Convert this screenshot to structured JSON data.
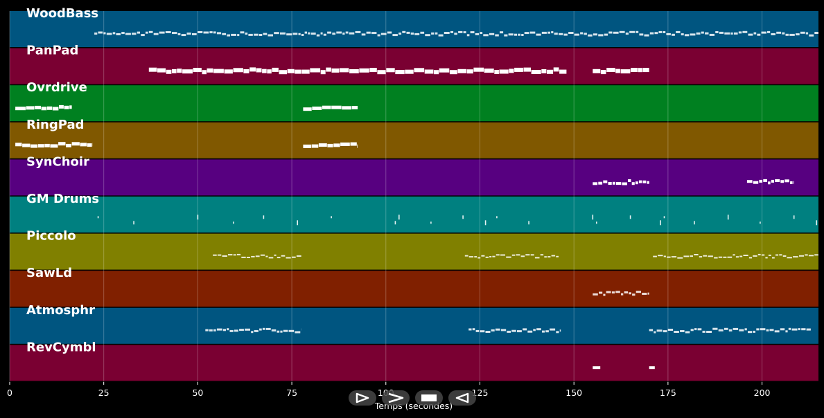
{
  "chart_data": {
    "type": "piano-roll",
    "xlabel": "Temps (secondes)",
    "xlim": [
      0,
      215
    ],
    "x_ticks": [
      0,
      25,
      50,
      75,
      100,
      125,
      150,
      175,
      200
    ],
    "grid": true,
    "tracks": [
      {
        "name": "WoodBass",
        "color": "#005580",
        "note_weight": 3,
        "segments": [
          [
            22.5,
            215
          ]
        ]
      },
      {
        "name": "PanPad",
        "color": "#7a0032",
        "note_weight": 6,
        "segments": [
          [
            37,
            148
          ],
          [
            155,
            170
          ]
        ]
      },
      {
        "name": "Ovrdrive",
        "color": "#008020",
        "note_weight": 5,
        "segments": [
          [
            1.5,
            16.5
          ],
          [
            78,
            92.5
          ]
        ]
      },
      {
        "name": "RingPad",
        "color": "#805800",
        "note_weight": 5,
        "segments": [
          [
            1.5,
            22
          ],
          [
            78,
            92.5
          ]
        ]
      },
      {
        "name": "SynChoir",
        "color": "#570080",
        "note_weight": 4,
        "segments": [
          [
            155,
            170
          ],
          [
            196,
            208.5
          ]
        ]
      },
      {
        "name": "GM Drums",
        "color": "#008080",
        "note_weight": 2,
        "hits": [
          23.5,
          33,
          50,
          59.5,
          67.5,
          76.5,
          85.5,
          102.5,
          103.5,
          112,
          120.5,
          126.5,
          129.5,
          138,
          155,
          156,
          165,
          173,
          174,
          182,
          191,
          199.5,
          208.5,
          214.5
        ]
      },
      {
        "name": "Piccolo",
        "color": "#808000",
        "note_weight": 2,
        "segments": [
          [
            54,
            77.5
          ],
          [
            121,
            146
          ],
          [
            171,
            215
          ]
        ]
      },
      {
        "name": "SawLd",
        "color": "#802000",
        "note_weight": 3,
        "segments": [
          [
            155,
            170
          ]
        ]
      },
      {
        "name": "Atmosphr",
        "color": "#005580",
        "note_weight": 3,
        "segments": [
          [
            52,
            77.5
          ],
          [
            122,
            146.5
          ],
          [
            170,
            213
          ]
        ]
      },
      {
        "name": "RevCymbl",
        "color": "#7a0032",
        "note_weight": 4,
        "notes": [
          [
            155,
            157
          ],
          [
            170,
            171.5
          ]
        ]
      }
    ]
  },
  "transport": {
    "play": "play-icon",
    "forward": "fast-forward-icon",
    "stop": "stop-icon",
    "back": "rewind-icon"
  }
}
